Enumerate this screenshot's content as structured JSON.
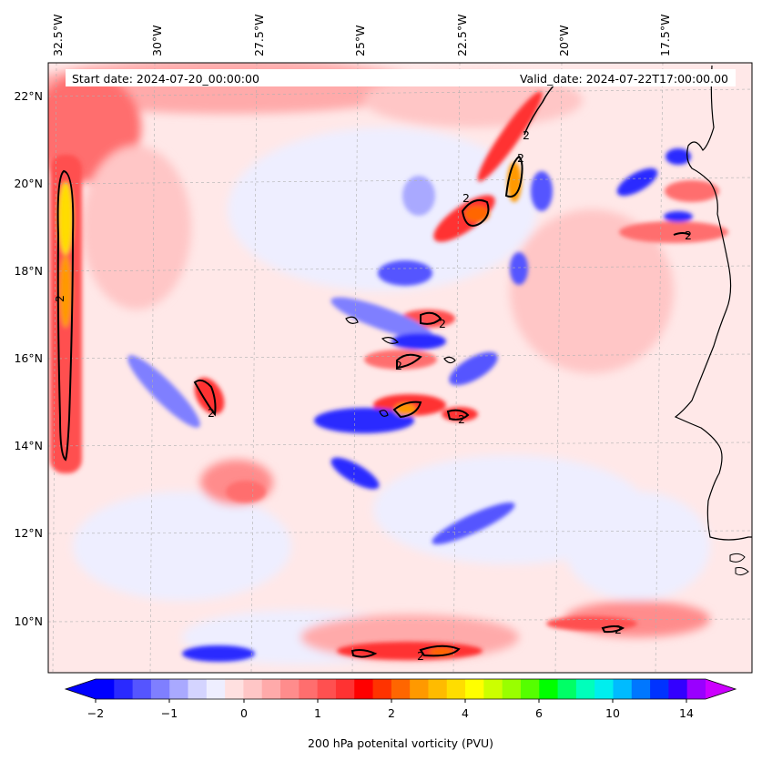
{
  "header": {
    "start_date": "Start date: 2024-07-20_00:00:00",
    "valid_date": "Valid_date: 2024-07-22T17:00:00.00"
  },
  "axes": {
    "lon_labels": [
      "32.5°W",
      "30°W",
      "27.5°W",
      "25°W",
      "22.5°W",
      "20°W",
      "17.5°W"
    ],
    "lat_labels": [
      "22°N",
      "20°N",
      "18°N",
      "16°N",
      "14°N",
      "12°N",
      "10°N"
    ]
  },
  "colorbar": {
    "label": "200 hPa potenital vorticity (PVU)",
    "tick_labels": [
      "−2",
      "−1",
      "0",
      "1",
      "2",
      "4",
      "6",
      "10",
      "14"
    ],
    "colors": [
      "#0000ff",
      "#2a2aff",
      "#5555ff",
      "#7f7fff",
      "#a9a9ff",
      "#d4d4ff",
      "#eeeeff",
      "#ffe0e0",
      "#ffc6c6",
      "#ffaaaa",
      "#ff8c8c",
      "#ff6e6e",
      "#ff5050",
      "#ff3232",
      "#ff0000",
      "#ff3300",
      "#ff6600",
      "#ff9900",
      "#ffbb00",
      "#ffdd00",
      "#ffff00",
      "#ccff00",
      "#99ff00",
      "#55ff00",
      "#00ff00",
      "#00ff66",
      "#00ffbb",
      "#00eeee",
      "#00bbff",
      "#0077ff",
      "#0033ff",
      "#3300ff",
      "#9900ff"
    ],
    "under_color": "#0000ff",
    "over_color": "#cc00ff"
  },
  "contour_label": "2"
}
